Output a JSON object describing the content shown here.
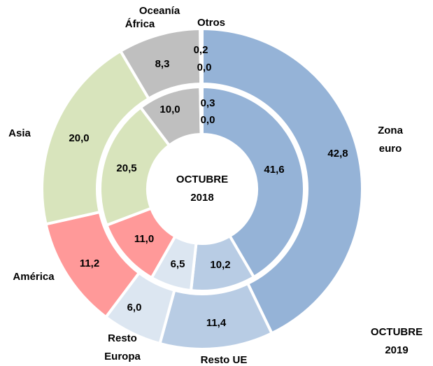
{
  "chart_data": {
    "type": "donut",
    "categories": [
      "Zona euro",
      "Resto UE",
      "Resto Europa",
      "América",
      "Asia",
      "África",
      "Oceanía",
      "Otros"
    ],
    "colors": [
      "#95b3d7",
      "#b8cce4",
      "#dce6f1",
      "#ff9999",
      "#d8e4bc",
      "#bfbfbf",
      "#a6a6a6",
      "#808080"
    ],
    "series": [
      {
        "name": "OCTUBRE 2019",
        "ring": "outer",
        "values": [
          42.8,
          11.4,
          6.0,
          11.2,
          20.0,
          8.3,
          0.2,
          0.0
        ],
        "value_labels": [
          "42,8",
          "11,4",
          "6,0",
          "11,2",
          "20,0",
          "8,3",
          "0,2",
          "0,0"
        ]
      },
      {
        "name": "OCTUBRE 2018",
        "ring": "inner",
        "values": [
          41.6,
          10.2,
          6.5,
          11.0,
          20.5,
          10.0,
          0.3,
          0.0
        ],
        "value_labels": [
          "41,6",
          "10,2",
          "6,5",
          "11,0",
          "20,5",
          "10,0",
          "0,3",
          "0,0"
        ]
      }
    ]
  }
}
